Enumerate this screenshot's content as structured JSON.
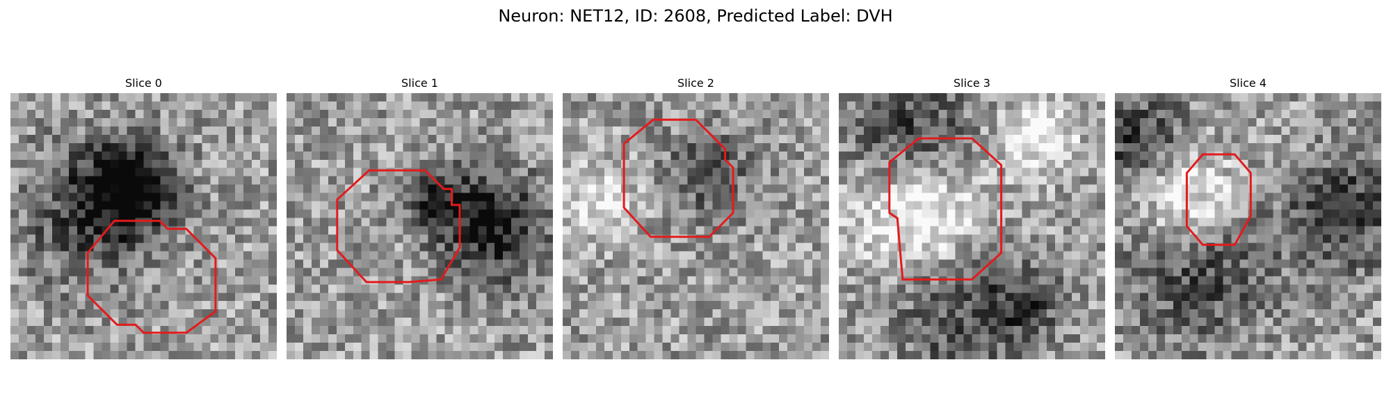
{
  "figure": {
    "title": "Neuron: NET12, ID: 2608, Predicted Label: DVH"
  },
  "panels": [
    {
      "title": "Slice 0",
      "seed": 11,
      "contour_color": "#e41a1c",
      "dark_blobs": [
        [
          0.45,
          0.35,
          0.12,
          0.55
        ],
        [
          0.3,
          0.45,
          0.18,
          0.35
        ]
      ],
      "bright_blobs": [],
      "contour": [
        [
          0.39,
          0.48
        ],
        [
          0.56,
          0.48
        ],
        [
          0.59,
          0.51
        ],
        [
          0.66,
          0.51
        ],
        [
          0.77,
          0.62
        ],
        [
          0.77,
          0.82
        ],
        [
          0.66,
          0.9
        ],
        [
          0.5,
          0.9
        ],
        [
          0.47,
          0.87
        ],
        [
          0.4,
          0.87
        ],
        [
          0.29,
          0.76
        ],
        [
          0.29,
          0.6
        ]
      ]
    },
    {
      "title": "Slice 1",
      "seed": 23,
      "contour_color": "#e41a1c",
      "dark_blobs": [
        [
          0.78,
          0.5,
          0.14,
          0.55
        ],
        [
          0.55,
          0.4,
          0.08,
          0.45
        ]
      ],
      "bright_blobs": [],
      "contour": [
        [
          0.31,
          0.29
        ],
        [
          0.52,
          0.29
        ],
        [
          0.59,
          0.36
        ],
        [
          0.62,
          0.36
        ],
        [
          0.62,
          0.42
        ],
        [
          0.65,
          0.42
        ],
        [
          0.65,
          0.58
        ],
        [
          0.58,
          0.7
        ],
        [
          0.46,
          0.71
        ],
        [
          0.3,
          0.71
        ],
        [
          0.19,
          0.59
        ],
        [
          0.19,
          0.4
        ]
      ]
    },
    {
      "title": "Slice 2",
      "seed": 37,
      "contour_color": "#e41a1c",
      "dark_blobs": [
        [
          0.55,
          0.3,
          0.12,
          0.3
        ]
      ],
      "bright_blobs": [
        [
          0.15,
          0.4,
          0.1,
          0.3
        ]
      ],
      "contour": [
        [
          0.34,
          0.1
        ],
        [
          0.5,
          0.1
        ],
        [
          0.61,
          0.21
        ],
        [
          0.61,
          0.25
        ],
        [
          0.64,
          0.28
        ],
        [
          0.64,
          0.45
        ],
        [
          0.55,
          0.54
        ],
        [
          0.33,
          0.54
        ],
        [
          0.23,
          0.43
        ],
        [
          0.23,
          0.19
        ]
      ]
    },
    {
      "title": "Slice 3",
      "seed": 53,
      "contour_color": "#e41a1c",
      "dark_blobs": [
        [
          0.28,
          0.2,
          0.16,
          0.45
        ],
        [
          0.45,
          0.82,
          0.18,
          0.3
        ],
        [
          0.7,
          0.8,
          0.1,
          0.3
        ]
      ],
      "bright_blobs": [
        [
          0.3,
          0.42,
          0.16,
          0.55
        ],
        [
          0.75,
          0.15,
          0.1,
          0.4
        ]
      ],
      "contour": [
        [
          0.3,
          0.17
        ],
        [
          0.5,
          0.17
        ],
        [
          0.61,
          0.27
        ],
        [
          0.61,
          0.6
        ],
        [
          0.5,
          0.7
        ],
        [
          0.39,
          0.7
        ],
        [
          0.24,
          0.7
        ],
        [
          0.23,
          0.59
        ],
        [
          0.22,
          0.47
        ],
        [
          0.19,
          0.45
        ],
        [
          0.19,
          0.26
        ]
      ]
    },
    {
      "title": "Slice 4",
      "seed": 71,
      "contour_color": "#e41a1c",
      "dark_blobs": [
        [
          0.1,
          0.2,
          0.14,
          0.45
        ],
        [
          0.3,
          0.65,
          0.2,
          0.35
        ],
        [
          0.85,
          0.45,
          0.14,
          0.45
        ]
      ],
      "bright_blobs": [
        [
          0.25,
          0.38,
          0.14,
          0.55
        ]
      ],
      "contour": [
        [
          0.33,
          0.23
        ],
        [
          0.45,
          0.23
        ],
        [
          0.51,
          0.3
        ],
        [
          0.51,
          0.46
        ],
        [
          0.45,
          0.57
        ],
        [
          0.33,
          0.57
        ],
        [
          0.27,
          0.5
        ],
        [
          0.27,
          0.3
        ]
      ]
    }
  ]
}
